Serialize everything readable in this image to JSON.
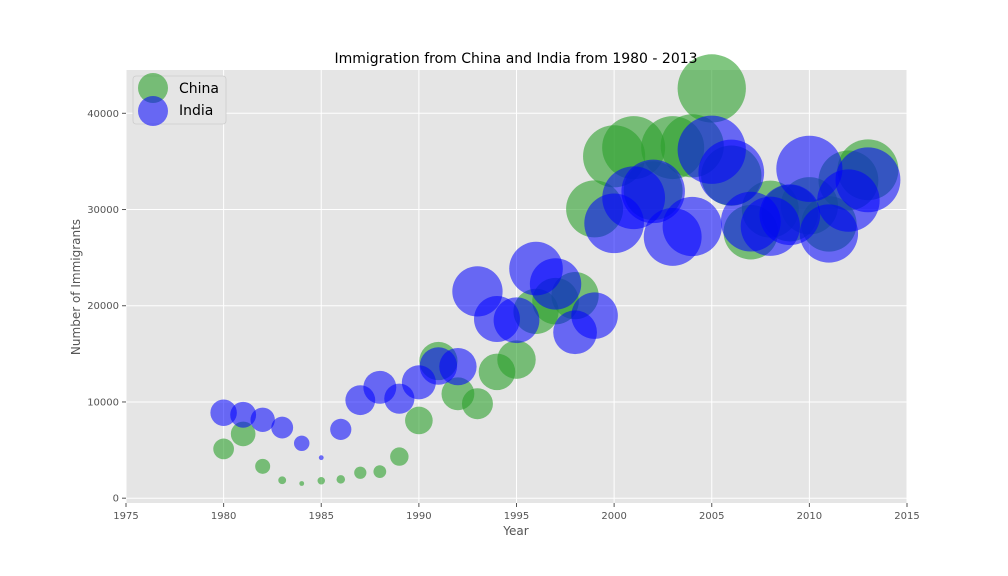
{
  "chart_data": {
    "type": "scatter",
    "title": "Immigration from China and India from 1980 - 2013",
    "xlabel": "Year",
    "ylabel": "Number of Immigrants",
    "xlim": [
      1975,
      2015
    ],
    "ylim": [
      -500,
      44500
    ],
    "xticks": [
      "1975",
      "1980",
      "1985",
      "1990",
      "1995",
      "2000",
      "2005",
      "2010",
      "2015"
    ],
    "yticks": [
      "0",
      "10000",
      "20000",
      "30000",
      "40000"
    ],
    "grid": true,
    "legend_position": "top-left",
    "background": "#e5e5e5",
    "series": [
      {
        "name": "China",
        "color": "#2ca02c",
        "x": [
          1980,
          1981,
          1982,
          1983,
          1984,
          1985,
          1986,
          1987,
          1988,
          1989,
          1990,
          1991,
          1992,
          1993,
          1994,
          1995,
          1996,
          1997,
          1998,
          1999,
          2000,
          2001,
          2002,
          2003,
          2004,
          2005,
          2006,
          2007,
          2008,
          2009,
          2010,
          2011,
          2012,
          2013
        ],
        "y": [
          5123,
          6682,
          3308,
          1863,
          1527,
          1816,
          1960,
          2643,
          2758,
          4323,
          8076,
          14255,
          10846,
          9817,
          13128,
          14398,
          19415,
          20475,
          21049,
          30069,
          35529,
          36434,
          31961,
          36439,
          36619,
          42584,
          33518,
          27642,
          30037,
          29622,
          30391,
          28502,
          33024,
          34129
        ]
      },
      {
        "name": "India",
        "color": "#0000ff",
        "x": [
          1980,
          1981,
          1982,
          1983,
          1984,
          1985,
          1986,
          1987,
          1988,
          1989,
          1990,
          1991,
          1992,
          1993,
          1994,
          1995,
          1996,
          1997,
          1998,
          1999,
          2000,
          2001,
          2002,
          2003,
          2004,
          2005,
          2006,
          2007,
          2008,
          2009,
          2010,
          2011,
          2012,
          2013
        ],
        "y": [
          8880,
          8670,
          8147,
          7338,
          5704,
          4211,
          7150,
          10189,
          11522,
          10343,
          12041,
          13734,
          13673,
          21496,
          18620,
          18489,
          23859,
          22268,
          17241,
          18974,
          28572,
          31223,
          31889,
          27155,
          28235,
          36210,
          33848,
          28742,
          28261,
          29456,
          34235,
          27509,
          30933,
          33087
        ]
      }
    ]
  }
}
